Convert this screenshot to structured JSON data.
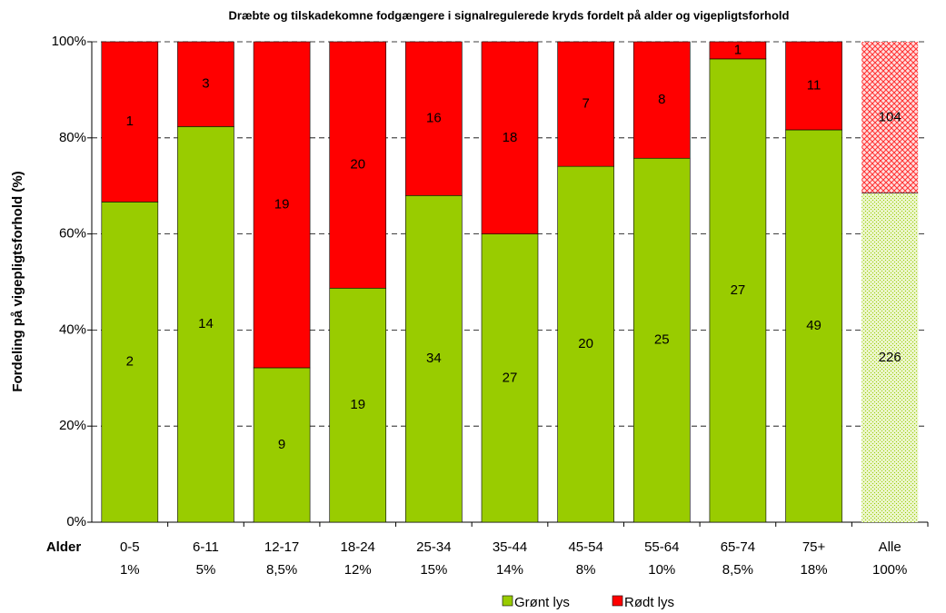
{
  "chart_data": {
    "type": "bar",
    "stacking": "percent",
    "title": "Dræbte og tilskadekomne fodgængere i signalregulerede kryds fordelt på alder og vigepligtsforhold",
    "y_label": "Fordeling på vigepligtsforhold (%)",
    "x_label": "Alder",
    "categories": [
      "0-5",
      "6-11",
      "12-17",
      "18-24",
      "25-34",
      "35-44",
      "45-54",
      "55-64",
      "65-74",
      "75+",
      "Alle"
    ],
    "category_shares": [
      "1%",
      "5%",
      "8,5%",
      "12%",
      "15%",
      "14%",
      "8%",
      "10%",
      "8,5%",
      "18%",
      "100%"
    ],
    "series": [
      {
        "name": "Grønt lys",
        "color": "#99cc00",
        "values": [
          2,
          14,
          9,
          19,
          34,
          27,
          20,
          25,
          27,
          49,
          226
        ]
      },
      {
        "name": "Rødt lys",
        "color": "#ff0000",
        "values": [
          1,
          3,
          19,
          20,
          16,
          18,
          7,
          8,
          1,
          11,
          104
        ]
      }
    ],
    "hatched_index": 10,
    "ylim": [
      0,
      100
    ],
    "yticks": [
      {
        "value": 0,
        "label": "0%"
      },
      {
        "value": 20,
        "label": "20%"
      },
      {
        "value": 40,
        "label": "40%"
      },
      {
        "value": 60,
        "label": "60%"
      },
      {
        "value": 80,
        "label": "80%"
      },
      {
        "value": 100,
        "label": "100%"
      }
    ],
    "grid": true,
    "legend": "bottom"
  }
}
